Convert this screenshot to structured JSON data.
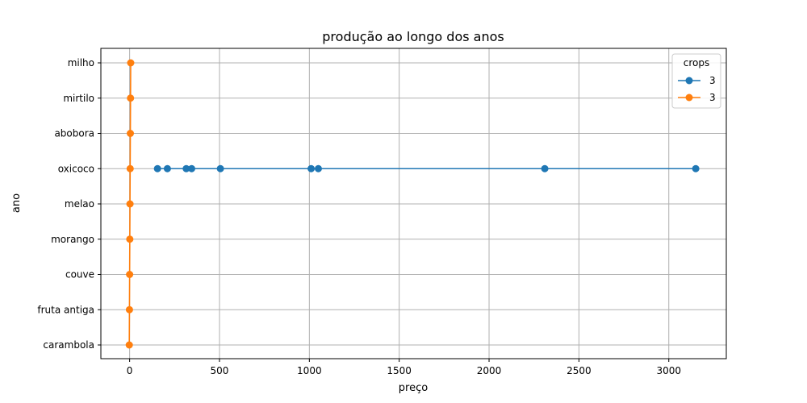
{
  "chart_data": {
    "type": "line",
    "title": "produção ao longo dos anos",
    "xlabel": "preço",
    "ylabel": "ano",
    "xlim": [
      -160,
      3320
    ],
    "x_ticks": [
      0,
      500,
      1000,
      1500,
      2000,
      2500,
      3000
    ],
    "categories": [
      "carambola",
      "fruta antiga",
      "couve",
      "morango",
      "melao",
      "oxicoco",
      "abobora",
      "mirtilo",
      "milho"
    ],
    "grid": true,
    "legend": {
      "title": "crops",
      "placement": "top-right"
    },
    "series": [
      {
        "name": "3",
        "color": "#1f77b4",
        "marker": "circle",
        "points": [
          {
            "x": 155,
            "y": "oxicoco"
          },
          {
            "x": 210,
            "y": "oxicoco"
          },
          {
            "x": 315,
            "y": "oxicoco"
          },
          {
            "x": 345,
            "y": "oxicoco"
          },
          {
            "x": 505,
            "y": "oxicoco"
          },
          {
            "x": 1010,
            "y": "oxicoco"
          },
          {
            "x": 1050,
            "y": "oxicoco"
          },
          {
            "x": 2310,
            "y": "oxicoco"
          },
          {
            "x": 3150,
            "y": "oxicoco"
          }
        ]
      },
      {
        "name": "3",
        "color": "#ff7f0e",
        "marker": "circle",
        "points": [
          {
            "x": -2,
            "y": "carambola"
          },
          {
            "x": -1,
            "y": "fruta antiga"
          },
          {
            "x": 0,
            "y": "couve"
          },
          {
            "x": 1,
            "y": "morango"
          },
          {
            "x": 2,
            "y": "melao"
          },
          {
            "x": 3,
            "y": "oxicoco"
          },
          {
            "x": 4,
            "y": "abobora"
          },
          {
            "x": 5,
            "y": "mirtilo"
          },
          {
            "x": 6,
            "y": "milho"
          }
        ]
      }
    ]
  }
}
